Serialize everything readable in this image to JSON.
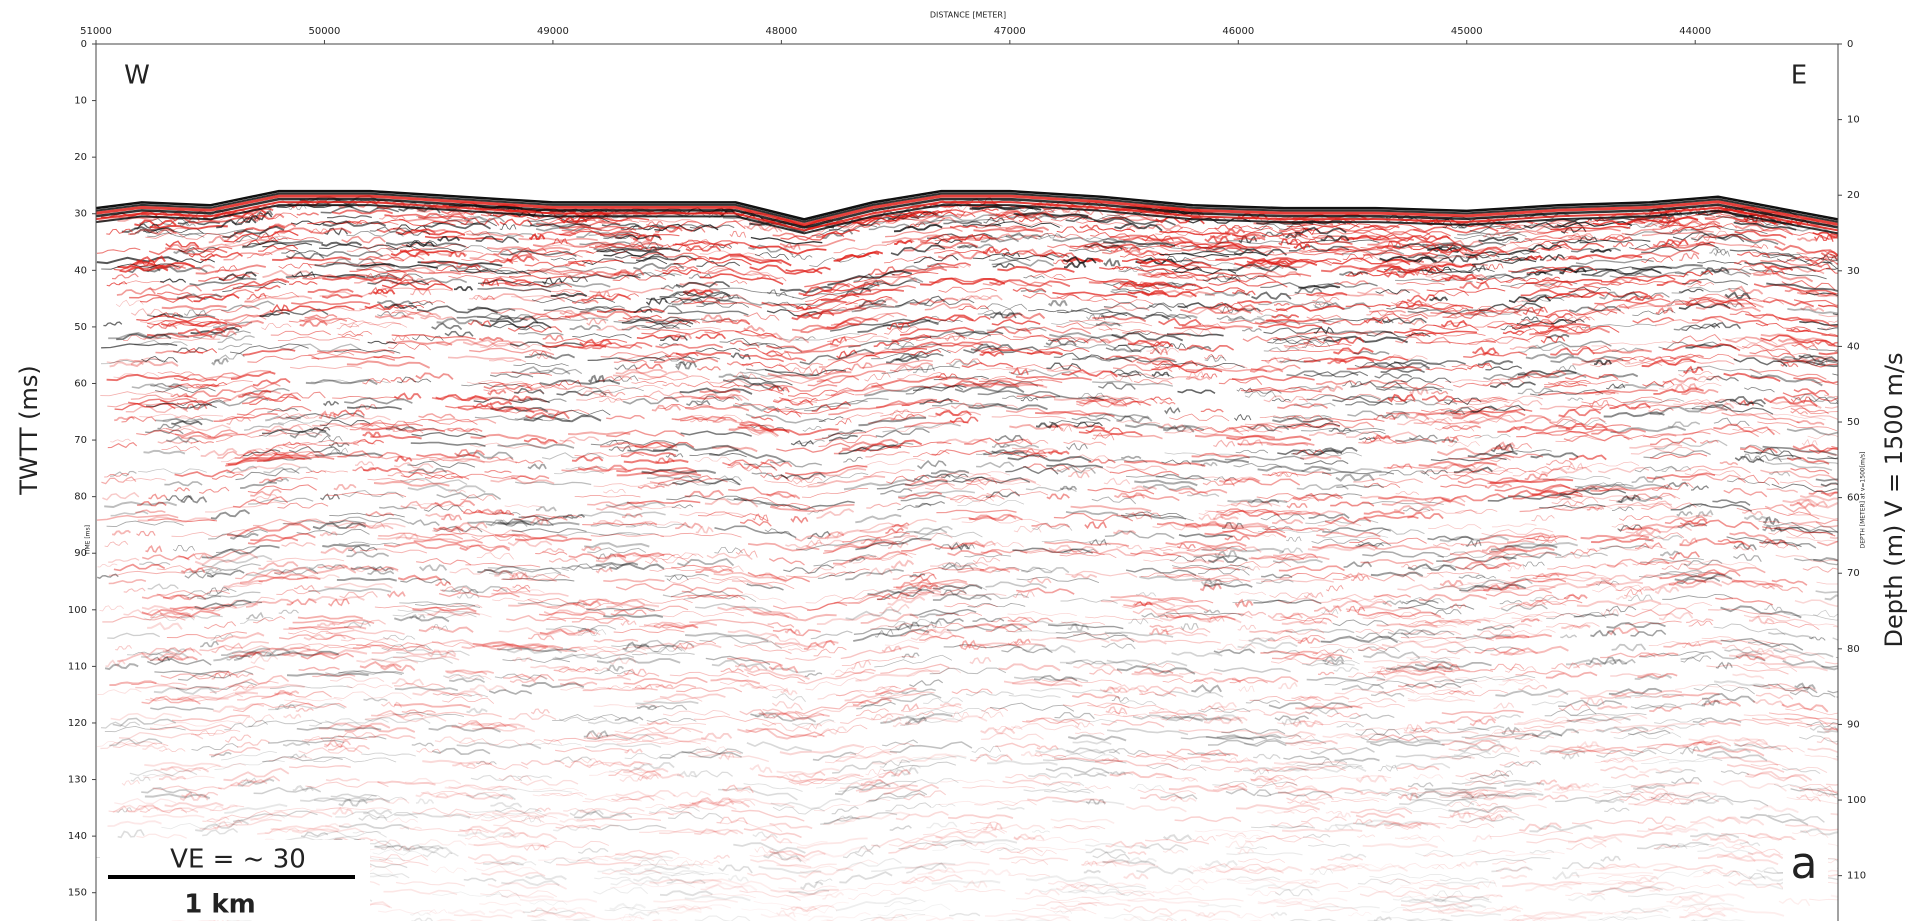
{
  "chart_data": {
    "type": "seismic",
    "x_label": "DISTANCE [METER]",
    "y_label_small": "TIME [ms]",
    "y_label": "TWTT (ms)",
    "y2_label_small": "DEPTH [METER] at v=1500[m/s]",
    "y2_label": "Depth (m) V = 1500 m/s",
    "annotations": {
      "west": "W",
      "east": "E",
      "ve": "VE = ~ 30",
      "scale": "1 km",
      "panel": "a"
    },
    "xlim": [
      51000,
      43375
    ],
    "xticks": [
      51000,
      50000,
      49000,
      48000,
      47000,
      46000,
      45000,
      44000
    ],
    "ylim": [
      0,
      155
    ],
    "yticks": [
      0,
      10,
      20,
      30,
      40,
      50,
      60,
      70,
      80,
      90,
      100,
      110,
      120,
      130,
      140,
      150
    ],
    "y2lim": [
      0,
      116
    ],
    "y2ticks": [
      0,
      10,
      20,
      30,
      40,
      50,
      60,
      70,
      80,
      90,
      100,
      110
    ],
    "x": [
      51000,
      50800,
      50500,
      50200,
      49800,
      49400,
      49000,
      48600,
      48200,
      47900,
      47600,
      47300,
      47000,
      46600,
      46200,
      45800,
      45400,
      45000,
      44600,
      44200,
      43900,
      43375
    ],
    "values": [
      29,
      28,
      28.5,
      26,
      26,
      27,
      28,
      28,
      28,
      31,
      28,
      26,
      26,
      27,
      28.5,
      29,
      29,
      29.5,
      28.5,
      28,
      27,
      31
    ],
    "color": "#e0201a"
  }
}
